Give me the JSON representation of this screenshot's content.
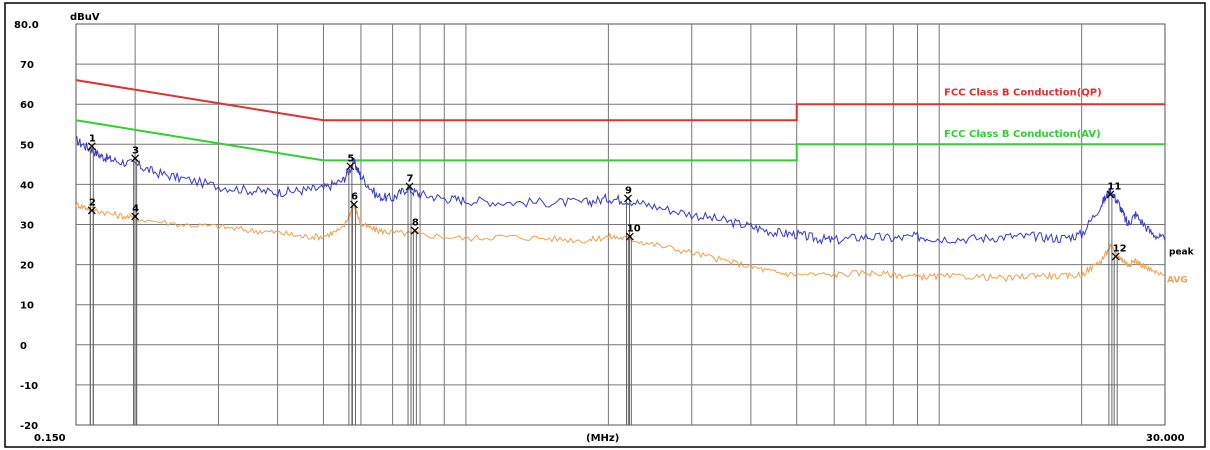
{
  "chart_data": {
    "type": "line",
    "title": "",
    "y_unit": "dBuV",
    "x_unit": "(MHz)",
    "x_scale": "log",
    "xlim": [
      0.15,
      30.0
    ],
    "ylim": [
      -20,
      80
    ],
    "y_ticks": [
      -20,
      -10,
      0,
      10,
      20,
      30,
      40,
      50,
      60,
      70
    ],
    "y_top_label": "80.0",
    "x_tick_labels": {
      "start": "0.150",
      "end": "30.000"
    },
    "grid": true,
    "limits": [
      {
        "name": "FCC Class B Conduction(QP)",
        "color": "#e03030",
        "points": [
          [
            0.15,
            66
          ],
          [
            0.5,
            56
          ],
          [
            5.0,
            56
          ],
          [
            5.0,
            60
          ],
          [
            30.0,
            60
          ]
        ]
      },
      {
        "name": "FCC Class B Conduction(AV)",
        "color": "#30d030",
        "points": [
          [
            0.15,
            56
          ],
          [
            0.5,
            46
          ],
          [
            5.0,
            46
          ],
          [
            5.0,
            50
          ],
          [
            30.0,
            50
          ]
        ]
      }
    ],
    "series": [
      {
        "name": "peak",
        "color": "#3838c8",
        "x": [
          0.15,
          0.16,
          0.17,
          0.18,
          0.2,
          0.22,
          0.25,
          0.3,
          0.35,
          0.4,
          0.45,
          0.5,
          0.55,
          0.58,
          0.6,
          0.65,
          0.7,
          0.75,
          0.8,
          0.9,
          1.0,
          1.2,
          1.5,
          1.8,
          2.0,
          2.2,
          2.5,
          3.0,
          3.5,
          4.0,
          4.5,
          5.0,
          5.5,
          6.0,
          7.0,
          8.0,
          9.0,
          10.0,
          12.0,
          14.0,
          16.0,
          18.0,
          20.0,
          22.0,
          23.0,
          24.0,
          25.0,
          26.0,
          28.0,
          30.0
        ],
        "y": [
          51,
          49,
          47,
          46,
          45,
          43,
          41.5,
          39.5,
          38.5,
          38,
          38.5,
          39,
          41,
          45.5,
          42,
          37,
          36.5,
          39,
          37.5,
          36.5,
          36,
          35.5,
          35.5,
          35.5,
          36.5,
          36,
          34.5,
          32.5,
          31,
          29.5,
          28,
          27.5,
          26.5,
          26,
          27,
          26.5,
          27,
          26.5,
          26.5,
          27,
          27,
          26.5,
          27.5,
          35,
          38.5,
          35,
          30,
          32.5,
          28,
          26
        ]
      },
      {
        "name": "AVG",
        "color": "#f0a050",
        "x": [
          0.15,
          0.16,
          0.18,
          0.2,
          0.25,
          0.3,
          0.35,
          0.4,
          0.45,
          0.5,
          0.55,
          0.58,
          0.6,
          0.65,
          0.7,
          0.8,
          1.0,
          1.2,
          1.5,
          1.8,
          2.0,
          2.2,
          2.5,
          3.0,
          3.5,
          4.0,
          4.5,
          5.0,
          6.0,
          7.0,
          8.0,
          9.0,
          10.0,
          12.0,
          14.0,
          16.0,
          18.0,
          20.0,
          22.0,
          23.0,
          24.0,
          25.0,
          26.0,
          28.0,
          30.0
        ],
        "y": [
          35,
          34,
          32.5,
          31.5,
          30,
          29.5,
          28.5,
          28,
          27,
          27,
          29,
          35,
          30,
          28.5,
          28,
          27.5,
          26.5,
          27,
          26.5,
          26,
          27,
          26.5,
          25,
          23,
          21,
          19.5,
          18,
          17.5,
          17.5,
          18,
          17.5,
          17,
          17,
          17,
          16.5,
          17.5,
          17,
          17.5,
          21,
          24.5,
          22,
          20,
          21,
          18.5,
          17
        ]
      }
    ],
    "markers": [
      {
        "label": "1",
        "x": 0.162,
        "y": 49.5
      },
      {
        "label": "2",
        "x": 0.162,
        "y": 33.5
      },
      {
        "label": "3",
        "x": 0.2,
        "y": 46.5
      },
      {
        "label": "4",
        "x": 0.2,
        "y": 32
      },
      {
        "label": "5",
        "x": 0.57,
        "y": 44.5
      },
      {
        "label": "6",
        "x": 0.58,
        "y": 35
      },
      {
        "label": "7",
        "x": 0.76,
        "y": 39.5
      },
      {
        "label": "8",
        "x": 0.78,
        "y": 28.5
      },
      {
        "label": "9",
        "x": 2.2,
        "y": 36.5
      },
      {
        "label": "10",
        "x": 2.22,
        "y": 27
      },
      {
        "label": "11",
        "x": 23.0,
        "y": 37.5
      },
      {
        "label": "12",
        "x": 23.6,
        "y": 22
      }
    ]
  }
}
